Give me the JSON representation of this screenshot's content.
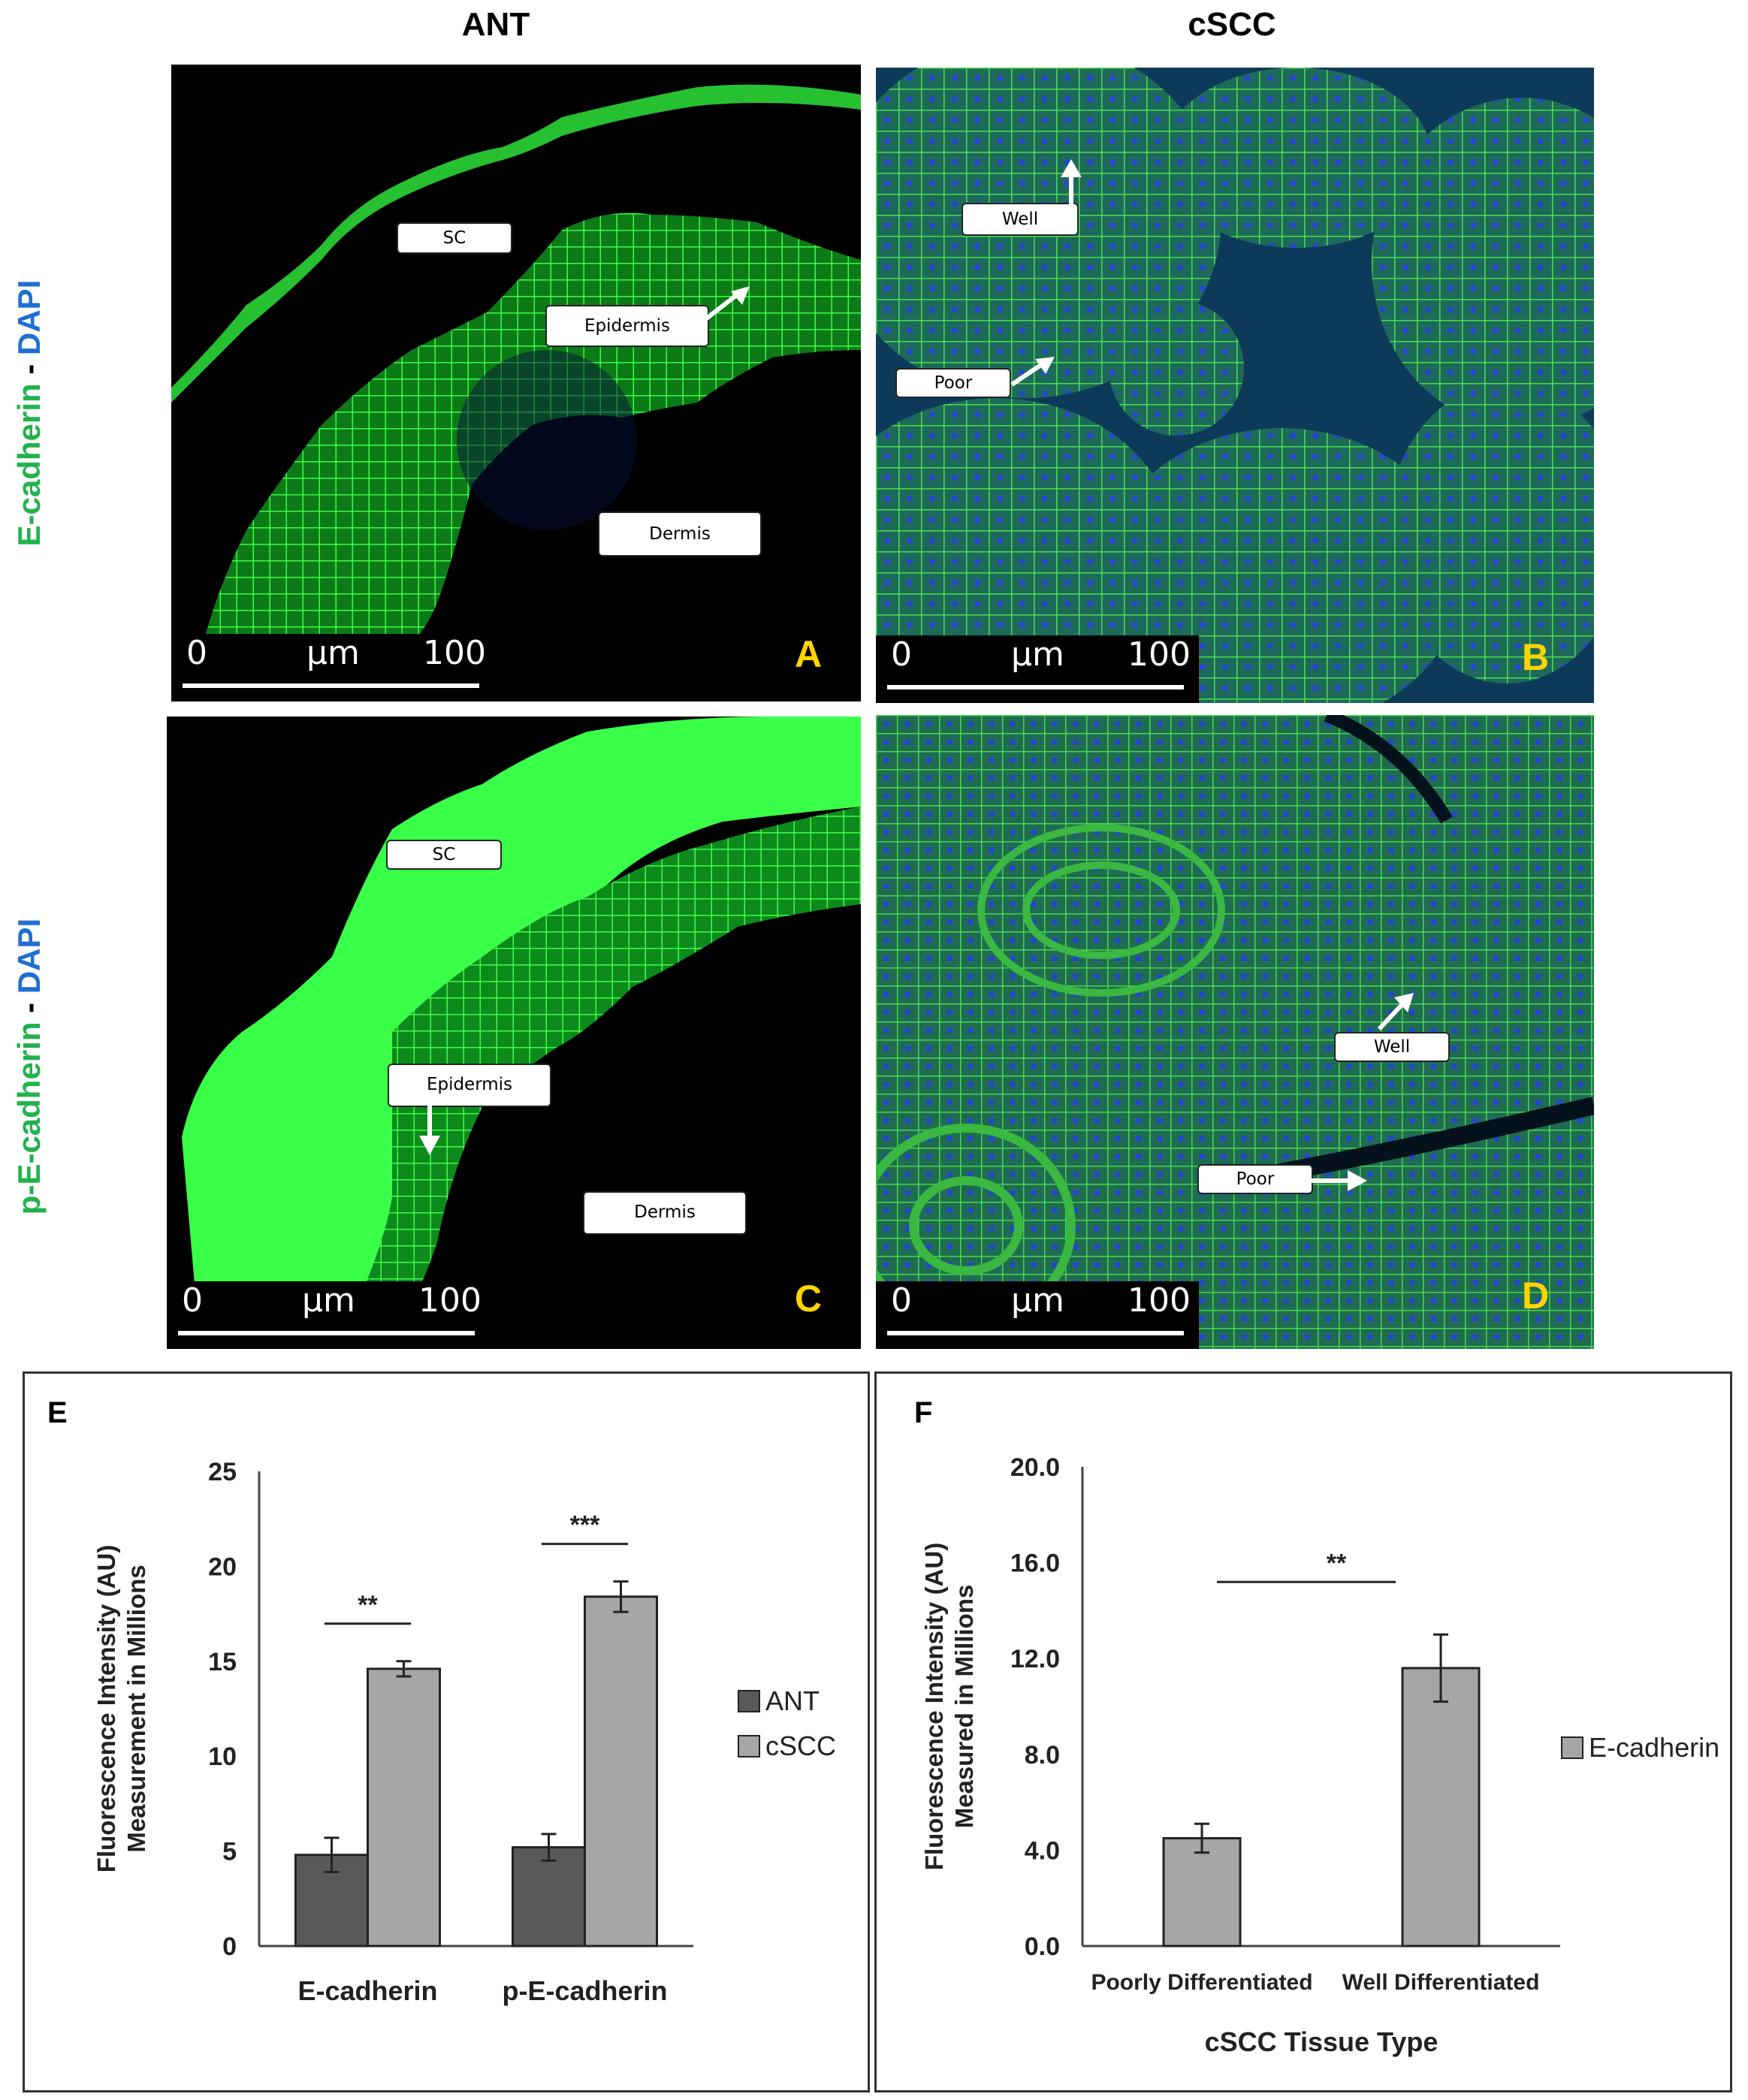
{
  "columns": {
    "left": "ANT",
    "right": "cSCC"
  },
  "rows": {
    "top": {
      "marker": "E-cadherin",
      "sep": " - ",
      "stain": "DAPI"
    },
    "bottom": {
      "marker": "p-E-cadherin",
      "sep": " - ",
      "stain": "DAPI"
    }
  },
  "panels": {
    "A": {
      "letter": "A",
      "labels": {
        "sc": "SC",
        "epidermis": "Epidermis",
        "dermis": "Dermis"
      }
    },
    "B": {
      "letter": "B",
      "labels": {
        "well": "Well",
        "poor": "Poor"
      }
    },
    "C": {
      "letter": "C",
      "labels": {
        "sc": "SC",
        "epidermis": "Epidermis",
        "dermis": "Dermis"
      }
    },
    "D": {
      "letter": "D",
      "labels": {
        "well": "Well",
        "poor": "Poor"
      }
    }
  },
  "scale_bar": {
    "start": "0",
    "unit": "μm",
    "end": "100"
  },
  "colors": {
    "ecad_green": "#2fd83a",
    "dapi_blue": "#1840c8",
    "panel_letter": "#ffd400",
    "ant_bar": "#595959",
    "cscc_bar": "#a6a6a6"
  },
  "chart_data": [
    {
      "panel": "E",
      "type": "bar",
      "title": "",
      "categories": [
        "E-cadherin",
        "p-E-cadherin"
      ],
      "series": [
        {
          "name": "ANT",
          "values": [
            4.8,
            5.2
          ],
          "errors": [
            0.9,
            0.7
          ],
          "color": "#595959"
        },
        {
          "name": "cSCC",
          "values": [
            14.6,
            18.4
          ],
          "errors": [
            0.4,
            0.8
          ],
          "color": "#a6a6a6"
        }
      ],
      "ylabel_line1": "Fluorescence Intensity (AU)",
      "ylabel_line2": "Measurement in Millions",
      "xlabel": "",
      "ylim": [
        0,
        25
      ],
      "yticks": [
        "0",
        "5",
        "10",
        "15",
        "20",
        "25"
      ],
      "significance": [
        "**",
        "***"
      ],
      "legend": "right"
    },
    {
      "panel": "F",
      "type": "bar",
      "title": "",
      "categories": [
        "Poorly Differentiated",
        "Well Differentiated"
      ],
      "series": [
        {
          "name": "E-cadherin",
          "values": [
            4.5,
            11.6
          ],
          "errors": [
            0.6,
            1.4
          ],
          "color": "#a6a6a6"
        }
      ],
      "ylabel_line1": "Fluorescence Intensity (AU)",
      "ylabel_line2": "Measured in Millions",
      "xlabel": "cSCC Tissue Type",
      "ylim": [
        0,
        20
      ],
      "yticks": [
        "0.0",
        "4.0",
        "8.0",
        "12.0",
        "16.0",
        "20.0"
      ],
      "significance": [
        "**"
      ],
      "legend": "right"
    }
  ]
}
